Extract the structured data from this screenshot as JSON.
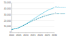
{
  "chart_data": {
    "type": "line",
    "x": [
      2000,
      2005,
      2010,
      2015,
      2020,
      2025,
      2030
    ],
    "xlim": [
      2000,
      2030
    ],
    "xticks": [
      2000,
      2005,
      2010,
      2015,
      2020,
      2025,
      2030
    ],
    "ylim": [
      0,
      50000
    ],
    "yticks": [
      0,
      {
        "value": 10000,
        "label": "10,000"
      },
      {
        "value": 20000,
        "label": "20,000"
      },
      {
        "value": 30000,
        "label": "30,000"
      },
      {
        "value": 40000,
        "label": "40,000"
      },
      {
        "value": 50000,
        "label": "50,000"
      }
    ],
    "grid": true,
    "series": [
      {
        "name": "Reference",
        "color": "#7fd3e8",
        "line_style": "solid",
        "values": [
          5000,
          8000,
          14000,
          22000,
          30000,
          37000,
          42000
        ]
      },
      {
        "name": "Low case",
        "color": "#3a9fb8",
        "line_style": "dashed",
        "values": [
          5000,
          8000,
          14000,
          20000,
          25000,
          29000,
          32000
        ]
      }
    ]
  }
}
